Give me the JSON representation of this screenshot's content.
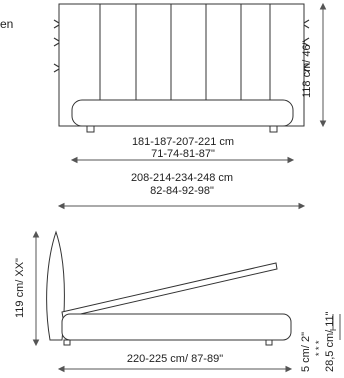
{
  "corner_text": "en",
  "front_view": {
    "width_inner": {
      "cm": "181-187-207-221 cm",
      "in": "71-74-81-87\""
    },
    "width_outer": {
      "cm": "208-214-234-248 cm",
      "in": "82-84-92-98\""
    },
    "height": "118 cm/ 46\""
  },
  "side_view": {
    "height": "119 cm/ XX\"",
    "length": "220-225 cm/ 87-89\"",
    "leg_height": "5 cm/ 2\"",
    "base_height": "28,5 cm/ 11\"",
    "asterisks": "* * *"
  },
  "colors": {
    "line": "#333333",
    "fill": "#ffffff",
    "dim": "#555555"
  }
}
